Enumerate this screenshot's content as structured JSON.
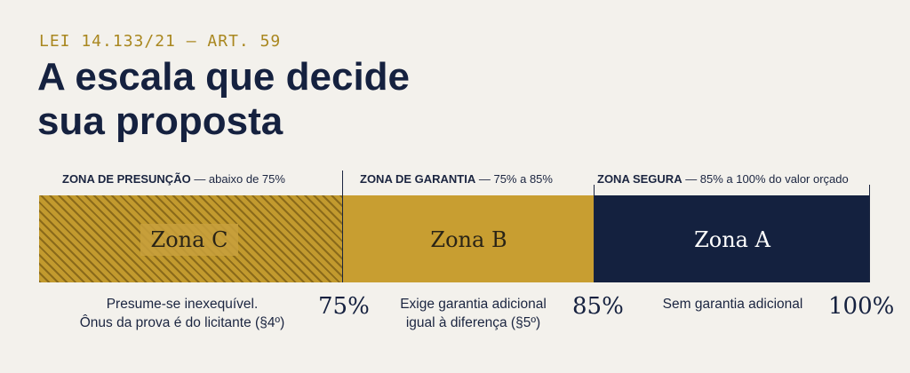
{
  "eyebrow": "LEI 14.133/21 — ART. 59",
  "title": {
    "line1": "A escala que decide",
    "line2": "sua proposta"
  },
  "zones": {
    "c": {
      "header_bold": "ZONA DE PRESUNÇÃO",
      "header_rest": " — abaixo de 75%",
      "label": "Zona C",
      "color": "#c29a2e",
      "desc": [
        "Presume-se inexequível.",
        "Ônus da prova é do licitante (§4º)"
      ]
    },
    "b": {
      "header_bold": "ZONA DE GARANTIA",
      "header_rest": " — 75% a 85%",
      "label": "Zona B",
      "color": "#c89e31",
      "desc": [
        "Exige garantia adicional",
        "igual à diferença (§5º)"
      ]
    },
    "a": {
      "header_bold": "ZONA SEGURA",
      "header_rest": " — 85% a 100% do valor orçado",
      "label": "Zona A",
      "color": "#14213f",
      "desc": [
        "Sem garantia adicional"
      ]
    }
  },
  "thresholds": {
    "t75": "75%",
    "t85": "85%",
    "t100": "100%"
  }
}
